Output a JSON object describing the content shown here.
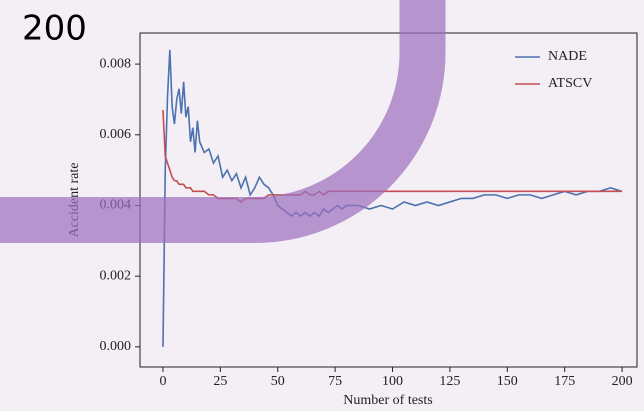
{
  "overlay_text": "200",
  "chart_data": {
    "type": "line",
    "xlabel": "Number of tests",
    "ylabel": "Accident rate",
    "x": [
      0,
      1,
      2,
      3,
      4,
      5,
      6,
      7,
      8,
      9,
      10,
      11,
      12,
      13,
      14,
      15,
      16,
      18,
      20,
      22,
      24,
      26,
      28,
      30,
      32,
      34,
      36,
      38,
      40,
      42,
      44,
      46,
      48,
      50,
      52,
      54,
      56,
      58,
      60,
      62,
      64,
      66,
      68,
      70,
      72,
      74,
      76,
      78,
      80,
      85,
      90,
      95,
      100,
      105,
      110,
      115,
      120,
      125,
      130,
      135,
      140,
      145,
      150,
      155,
      160,
      165,
      170,
      175,
      180,
      185,
      190,
      195,
      200
    ],
    "series": [
      {
        "name": "NADE",
        "color": "#4c72b0",
        "values": [
          0.0,
          0.005,
          0.0071,
          0.0084,
          0.0068,
          0.0063,
          0.007,
          0.0073,
          0.0066,
          0.0075,
          0.0065,
          0.0068,
          0.0058,
          0.0062,
          0.0055,
          0.0064,
          0.0058,
          0.0055,
          0.0056,
          0.0052,
          0.0054,
          0.0048,
          0.005,
          0.0047,
          0.0049,
          0.0045,
          0.0048,
          0.0043,
          0.0045,
          0.0048,
          0.0046,
          0.0045,
          0.0043,
          0.004,
          0.0039,
          0.0038,
          0.0037,
          0.0038,
          0.0037,
          0.0038,
          0.0037,
          0.0038,
          0.0037,
          0.0039,
          0.0038,
          0.0039,
          0.004,
          0.0039,
          0.004,
          0.004,
          0.0039,
          0.004,
          0.0039,
          0.0041,
          0.004,
          0.0041,
          0.004,
          0.0041,
          0.0042,
          0.0042,
          0.0043,
          0.0043,
          0.0042,
          0.0043,
          0.0043,
          0.0042,
          0.0043,
          0.0044,
          0.0043,
          0.0044,
          0.0044,
          0.0045,
          0.0044
        ]
      },
      {
        "name": "ATSCV",
        "color": "#c44e52",
        "values": [
          0.0067,
          0.0054,
          0.0052,
          0.005,
          0.0048,
          0.0047,
          0.0047,
          0.0046,
          0.0046,
          0.0046,
          0.0045,
          0.0045,
          0.0045,
          0.0044,
          0.0044,
          0.0044,
          0.0044,
          0.0044,
          0.0043,
          0.0043,
          0.0042,
          0.0042,
          0.0042,
          0.0042,
          0.0042,
          0.0041,
          0.0042,
          0.0042,
          0.0042,
          0.0042,
          0.0042,
          0.0043,
          0.0043,
          0.0043,
          0.0043,
          0.0043,
          0.0043,
          0.0043,
          0.0043,
          0.0044,
          0.0043,
          0.0043,
          0.0044,
          0.0043,
          0.0044,
          0.0044,
          0.0044,
          0.0044,
          0.0044,
          0.0044,
          0.0044,
          0.0044,
          0.0044,
          0.0044,
          0.0044,
          0.0044,
          0.0044,
          0.0044,
          0.0044,
          0.0044,
          0.0044,
          0.0044,
          0.0044,
          0.0044,
          0.0044,
          0.0044,
          0.0044,
          0.0044,
          0.0044,
          0.0044,
          0.0044,
          0.0044,
          0.0044
        ]
      }
    ],
    "xlim": [
      -10,
      206.5
    ],
    "ylim": [
      -0.00057,
      0.00888
    ],
    "xticks": [
      0,
      25,
      50,
      75,
      100,
      125,
      150,
      175,
      200
    ],
    "yticks": [
      {
        "value": 0,
        "label": "0.000"
      },
      {
        "value": 0.002,
        "label": "0.002"
      },
      {
        "value": 0.004,
        "label": "0.004"
      },
      {
        "value": 0.006,
        "label": "0.006"
      },
      {
        "value": 0.008,
        "label": "0.008"
      }
    ],
    "legend": "upper right"
  }
}
